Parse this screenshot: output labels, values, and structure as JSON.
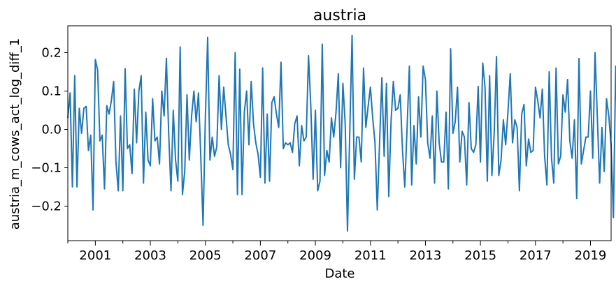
{
  "chart_data": {
    "type": "line",
    "title": "austria",
    "xlabel": "Date",
    "ylabel": "austria_m_cows_act_log_diff_1",
    "x_start": "2000-01",
    "x_end": "2019-10",
    "frequency": "monthly",
    "xlim": [
      "2000-01",
      "2019-10"
    ],
    "ylim": [
      -0.29,
      0.27
    ],
    "x_ticks": [
      "2001",
      "2003",
      "2005",
      "2007",
      "2009",
      "2011",
      "2013",
      "2015",
      "2017",
      "2019"
    ],
    "y_ticks": [
      "0.2",
      "0.1",
      "0.0",
      "−0.1",
      "−0.2"
    ],
    "y_tick_values": [
      0.2,
      0.1,
      0.0,
      -0.1,
      -0.2
    ],
    "grid": false,
    "legend": "none",
    "color": "#1f77b4",
    "series": [
      {
        "values": [
          0.03,
          0.095,
          -0.15,
          0.14,
          -0.15,
          0.055,
          -0.01,
          0.055,
          0.06,
          -0.055,
          -0.015,
          -0.21,
          0.182,
          0.155,
          -0.03,
          -0.015,
          -0.155,
          0.062,
          0.04,
          0.075,
          0.125,
          -0.085,
          -0.16,
          0.035,
          -0.16,
          0.158,
          -0.05,
          -0.04,
          -0.115,
          0.105,
          -0.035,
          0.1,
          0.14,
          -0.14,
          0.045,
          -0.08,
          -0.095,
          0.08,
          -0.03,
          -0.02,
          -0.09,
          0.1,
          0.035,
          0.185,
          -0.01,
          -0.16,
          0.05,
          -0.08,
          -0.135,
          0.215,
          -0.17,
          -0.11,
          0.09,
          -0.08,
          0.035,
          0.1,
          0.02,
          0.095,
          -0.07,
          -0.25,
          0.03,
          0.24,
          -0.08,
          -0.02,
          -0.07,
          -0.045,
          0.14,
          0.0,
          0.11,
          0.035,
          -0.04,
          -0.065,
          -0.105,
          0.2,
          -0.17,
          0.157,
          -0.17,
          0.045,
          0.1,
          -0.04,
          0.125,
          0.015,
          -0.035,
          -0.065,
          -0.125,
          0.16,
          -0.14,
          0.04,
          -0.135,
          0.07,
          0.085,
          0.04,
          0.005,
          0.175,
          -0.05,
          -0.035,
          -0.04,
          -0.035,
          -0.06,
          0.015,
          0.035,
          -0.095,
          0.01,
          -0.03,
          -0.02,
          0.192,
          0.06,
          -0.13,
          0.05,
          -0.16,
          -0.135,
          0.222,
          -0.12,
          -0.055,
          -0.085,
          0.03,
          -0.02,
          0.045,
          0.145,
          -0.1,
          0.12,
          0.015,
          -0.265,
          -0.005,
          0.245,
          -0.13,
          -0.02,
          -0.02,
          -0.085,
          0.16,
          0.005,
          0.06,
          0.11,
          0.03,
          -0.035,
          -0.21,
          -0.035,
          0.135,
          -0.07,
          0.12,
          -0.175,
          0.02,
          0.125,
          0.05,
          0.055,
          0.09,
          -0.055,
          -0.15,
          0.005,
          0.165,
          -0.145,
          0.01,
          -0.09,
          0.085,
          -0.02,
          0.165,
          0.13,
          -0.035,
          -0.075,
          0.035,
          -0.14,
          0.1,
          -0.035,
          -0.085,
          -0.085,
          0.045,
          -0.155,
          0.21,
          -0.01,
          0.02,
          0.11,
          -0.085,
          -0.005,
          -0.02,
          -0.145,
          0.07,
          -0.05,
          -0.06,
          -0.04,
          0.112,
          -0.085,
          0.173,
          0.11,
          -0.135,
          0.14,
          -0.12,
          -0.01,
          0.19,
          -0.12,
          -0.08,
          0.025,
          -0.04,
          0.045,
          0.145,
          -0.035,
          0.025,
          0.005,
          -0.16,
          0.04,
          0.065,
          -0.095,
          -0.025,
          -0.06,
          -0.055,
          0.11,
          0.075,
          0.03,
          0.105,
          -0.07,
          -0.145,
          0.15,
          -0.075,
          -0.14,
          0.16,
          -0.09,
          -0.07,
          0.09,
          0.045,
          0.13,
          -0.03,
          -0.075,
          0.025,
          -0.18,
          0.185,
          -0.09,
          -0.055,
          -0.02,
          -0.02,
          0.1,
          -0.075,
          0.2,
          0.03,
          -0.14,
          0.005,
          -0.11,
          0.08,
          0.035,
          -0.04,
          -0.23,
          0.165,
          -0.05,
          0.085,
          0.16
        ]
      }
    ]
  }
}
